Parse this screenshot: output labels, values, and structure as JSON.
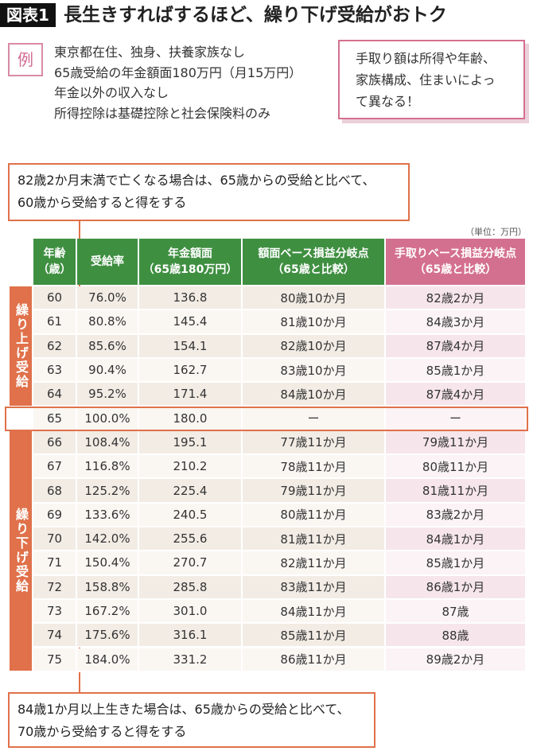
{
  "header": {
    "badge": "図表1",
    "title": "長生きすればするほど、繰り下げ受給がおトク"
  },
  "example": {
    "label": "例",
    "lines": [
      "東京都在住、独身、扶養家族なし",
      "65歳受給の年金額面180万円（月15万円）",
      "年金以外の収入なし",
      "所得控除は基礎控除と社会保険料のみ"
    ]
  },
  "note": {
    "lines": [
      "手取り額は所得や年齢、",
      "家族構成、住まいによっ",
      "て異なる！"
    ]
  },
  "callouts": [
    {
      "lines": [
        "82歳2か月末満で亡くなる場合は、65歳からの受給と比べて、",
        "60歳から受給すると得をする"
      ]
    },
    {
      "lines": [
        "84歳1か月以上生きた場合は、65歳からの受給と比べて、",
        "70歳から受給すると得をする"
      ]
    }
  ],
  "unit": "（単位：万円）",
  "table": {
    "columns": [
      [
        "年齢",
        "（歳）"
      ],
      [
        "受給率"
      ],
      [
        "年金額面",
        "（65歳180万円）"
      ],
      [
        "額面ベース損益分岐点",
        "（65歳と比較）"
      ],
      [
        "手取りベース損益分岐点",
        "（65歳と比較）"
      ]
    ],
    "groups": [
      "繰り上げ受給",
      "繰り下げ受給"
    ],
    "rows": [
      [
        "60",
        "76.0%",
        "136.8",
        "80歳10か月",
        "82歳2か月"
      ],
      [
        "61",
        "80.8%",
        "145.4",
        "81歳10か月",
        "84歳3か月"
      ],
      [
        "62",
        "85.6%",
        "154.1",
        "82歳10か月",
        "87歳4か月"
      ],
      [
        "63",
        "90.4%",
        "162.7",
        "83歳10か月",
        "85歳1か月"
      ],
      [
        "64",
        "95.2%",
        "171.4",
        "84歳10か月",
        "87歳4か月"
      ],
      [
        "65",
        "100.0%",
        "180.0",
        "ー",
        "ー"
      ],
      [
        "66",
        "108.4%",
        "195.1",
        "77歳11か月",
        "79歳11か月"
      ],
      [
        "67",
        "116.8%",
        "210.2",
        "78歳11か月",
        "80歳11か月"
      ],
      [
        "68",
        "125.2%",
        "225.4",
        "79歳11か月",
        "81歳11か月"
      ],
      [
        "69",
        "133.6%",
        "240.5",
        "80歳11か月",
        "83歳2か月"
      ],
      [
        "70",
        "142.0%",
        "255.6",
        "81歳11か月",
        "84歳1か月"
      ],
      [
        "71",
        "150.4%",
        "270.7",
        "82歳11か月",
        "85歳1か月"
      ],
      [
        "72",
        "158.8%",
        "285.8",
        "83歳11か月",
        "86歳1か月"
      ],
      [
        "73",
        "167.2%",
        "301.0",
        "84歳11か月",
        "87歳"
      ],
      [
        "74",
        "175.6%",
        "316.1",
        "85歳11か月",
        "88歳"
      ],
      [
        "75",
        "184.0%",
        "331.2",
        "86歳11か月",
        "89歳2か月"
      ]
    ]
  }
}
